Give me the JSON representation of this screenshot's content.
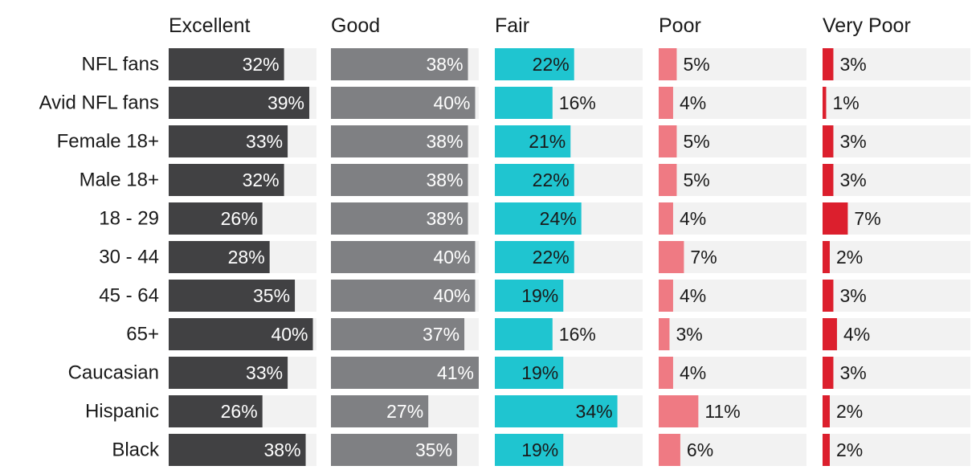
{
  "chart_data": {
    "type": "bar",
    "title": "",
    "xlabel": "",
    "ylabel": "",
    "xlim": [
      0,
      41
    ],
    "grid": false,
    "legend": "none",
    "categories": [
      "NFL fans",
      "Avid NFL fans",
      "Female 18+",
      "Male 18+",
      "18 - 29",
      "30 - 44",
      "45 - 64",
      "65+",
      "Caucasian",
      "Hispanic",
      "Black"
    ],
    "series": [
      {
        "name": "Excellent",
        "color": "#414143",
        "label_inside_color": "#ffffff",
        "values": [
          32,
          39,
          33,
          32,
          26,
          28,
          35,
          40,
          33,
          26,
          38
        ],
        "value_labels": [
          "32%",
          "39%",
          "33%",
          "32%",
          "26%",
          "28%",
          "35%",
          "40%",
          "33%",
          "26%",
          "38%"
        ]
      },
      {
        "name": "Good",
        "color": "#7f8083",
        "label_inside_color": "#ffffff",
        "values": [
          38,
          40,
          38,
          38,
          38,
          40,
          40,
          37,
          41,
          27,
          35
        ],
        "value_labels": [
          "38%",
          "40%",
          "38%",
          "38%",
          "38%",
          "40%",
          "40%",
          "37%",
          "41%",
          "27%",
          "35%"
        ]
      },
      {
        "name": "Fair",
        "color": "#1fc5d0",
        "label_inside_color": "#1a1a1a",
        "values": [
          22,
          16,
          21,
          22,
          24,
          22,
          19,
          16,
          19,
          34,
          19
        ],
        "value_labels": [
          "22%",
          "16%",
          "21%",
          "22%",
          "24%",
          "22%",
          "19%",
          "16%",
          "19%",
          "34%",
          "19%"
        ]
      },
      {
        "name": "Poor",
        "color": "#ef7a83",
        "label_inside_color": "#1a1a1a",
        "values": [
          5,
          4,
          5,
          5,
          4,
          7,
          4,
          3,
          4,
          11,
          6
        ],
        "value_labels": [
          "5%",
          "4%",
          "5%",
          "5%",
          "4%",
          "7%",
          "4%",
          "3%",
          "4%",
          "11%",
          "6%"
        ]
      },
      {
        "name": "Very Poor",
        "color": "#dc1f2d",
        "label_inside_color": "#1a1a1a",
        "values": [
          3,
          1,
          3,
          3,
          7,
          2,
          3,
          4,
          3,
          2,
          2
        ],
        "value_labels": [
          "3%",
          "1%",
          "3%",
          "3%",
          "7%",
          "2%",
          "3%",
          "4%",
          "3%",
          "2%",
          "2%"
        ]
      }
    ]
  },
  "colors": {
    "track": "#f2f2f2",
    "text": "#1a1a1a"
  }
}
